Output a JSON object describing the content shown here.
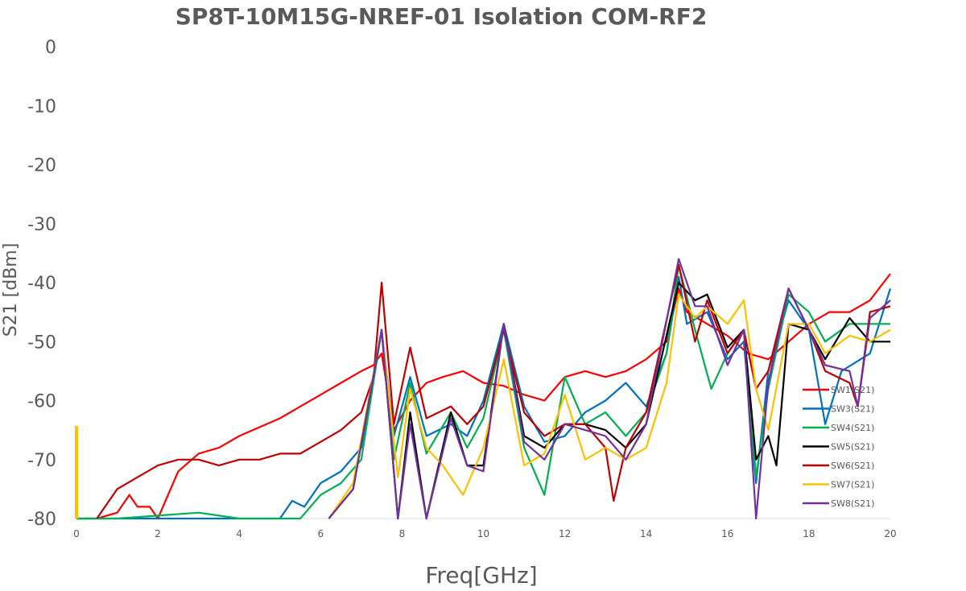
{
  "chart_data": {
    "type": "line",
    "title": "SP8T-10M15G-NREF-01  Isolation   COM-RF2",
    "xlabel": "Freq[GHz]",
    "ylabel": "S21  [dBm]",
    "xlim": [
      0,
      20
    ],
    "ylim": [
      -80,
      0
    ],
    "xticks": [
      "0",
      "2",
      "4",
      "6",
      "8",
      "10",
      "12",
      "14",
      "16",
      "18",
      "20"
    ],
    "yticks": [
      "0",
      "-10",
      "-20",
      "-30",
      "-40",
      "-50",
      "-60",
      "-70",
      "-80"
    ],
    "grid": false,
    "legend_position": "bottom-right",
    "marker_value": {
      "x": 0,
      "y_top": -64.3,
      "color": "#FFC000"
    },
    "series": [
      {
        "name": "SW1(S21)",
        "color": "#FF0000",
        "points": [
          [
            0,
            -80
          ],
          [
            0.5,
            -80
          ],
          [
            1,
            -79
          ],
          [
            1.3,
            -76
          ],
          [
            1.5,
            -78
          ],
          [
            1.8,
            -78
          ],
          [
            2,
            -80
          ],
          [
            2.5,
            -72
          ],
          [
            3,
            -69
          ],
          [
            3.5,
            -68
          ],
          [
            4,
            -66
          ],
          [
            5,
            -63
          ],
          [
            6,
            -59
          ],
          [
            6.5,
            -57
          ],
          [
            7,
            -55
          ],
          [
            7.3,
            -54
          ],
          [
            7.5,
            -52
          ],
          [
            7.8,
            -65
          ],
          [
            8.2,
            -60
          ],
          [
            8.6,
            -57
          ],
          [
            9,
            -56
          ],
          [
            9.5,
            -55
          ],
          [
            10,
            -57
          ],
          [
            10.5,
            -57.5
          ],
          [
            11,
            -59
          ],
          [
            11.5,
            -60
          ],
          [
            12,
            -56
          ],
          [
            12.5,
            -55
          ],
          [
            13,
            -56
          ],
          [
            13.5,
            -55
          ],
          [
            14,
            -53
          ],
          [
            14.5,
            -50
          ],
          [
            14.8,
            -41
          ],
          [
            15,
            -45
          ],
          [
            15.5,
            -47
          ],
          [
            16,
            -49
          ],
          [
            16.5,
            -52
          ],
          [
            17,
            -53
          ],
          [
            17.5,
            -50
          ],
          [
            18,
            -47
          ],
          [
            18.5,
            -45
          ],
          [
            19,
            -45
          ],
          [
            19.5,
            -43
          ],
          [
            20,
            -38.5
          ]
        ]
      },
      {
        "name": "SW3(S21)",
        "color": "#0070C0",
        "points": [
          [
            0,
            -80
          ],
          [
            3,
            -80
          ],
          [
            5,
            -80
          ],
          [
            5.3,
            -77
          ],
          [
            5.6,
            -78
          ],
          [
            6,
            -74
          ],
          [
            6.5,
            -72
          ],
          [
            7,
            -68
          ],
          [
            7.5,
            -48
          ],
          [
            7.8,
            -66
          ],
          [
            8.2,
            -56
          ],
          [
            8.6,
            -66
          ],
          [
            9.2,
            -64
          ],
          [
            9.6,
            -66
          ],
          [
            10,
            -60
          ],
          [
            10.5,
            -47
          ],
          [
            11,
            -61
          ],
          [
            11.5,
            -67
          ],
          [
            12,
            -66
          ],
          [
            12.5,
            -62
          ],
          [
            13,
            -60
          ],
          [
            13.5,
            -57
          ],
          [
            14,
            -61
          ],
          [
            14.5,
            -52
          ],
          [
            14.8,
            -39
          ],
          [
            15,
            -47
          ],
          [
            15.5,
            -45
          ],
          [
            16,
            -53
          ],
          [
            16.4,
            -50
          ],
          [
            16.7,
            -74
          ],
          [
            17,
            -55
          ],
          [
            17.5,
            -43
          ],
          [
            18,
            -48
          ],
          [
            18.4,
            -64
          ],
          [
            18.8,
            -55
          ],
          [
            19.5,
            -52
          ],
          [
            20,
            -41
          ]
        ]
      },
      {
        "name": "SW4(S21)",
        "color": "#00B050",
        "points": [
          [
            0,
            -80
          ],
          [
            1,
            -80
          ],
          [
            3,
            -79
          ],
          [
            4,
            -80
          ],
          [
            5.5,
            -80
          ],
          [
            6,
            -76
          ],
          [
            6.5,
            -74
          ],
          [
            7,
            -70
          ],
          [
            7.5,
            -48
          ],
          [
            7.8,
            -70
          ],
          [
            8.2,
            -57
          ],
          [
            8.6,
            -69
          ],
          [
            9.2,
            -62
          ],
          [
            9.6,
            -68
          ],
          [
            10,
            -63
          ],
          [
            10.5,
            -48
          ],
          [
            11,
            -68
          ],
          [
            11.5,
            -76
          ],
          [
            12,
            -56
          ],
          [
            12.5,
            -64
          ],
          [
            13,
            -62
          ],
          [
            13.5,
            -66
          ],
          [
            14,
            -62
          ],
          [
            14.5,
            -52
          ],
          [
            14.8,
            -37
          ],
          [
            15.2,
            -48
          ],
          [
            15.6,
            -58
          ],
          [
            16,
            -52
          ],
          [
            16.4,
            -48
          ],
          [
            16.7,
            -73
          ],
          [
            17,
            -58
          ],
          [
            17.5,
            -42
          ],
          [
            18,
            -45
          ],
          [
            18.4,
            -50
          ],
          [
            19,
            -47
          ],
          [
            20,
            -47
          ]
        ]
      },
      {
        "name": "SW5(S21)",
        "color": "#000000",
        "points": [
          [
            6.2,
            -80
          ],
          [
            6.8,
            -75
          ],
          [
            7.5,
            -48
          ],
          [
            7.9,
            -80
          ],
          [
            8.2,
            -62
          ],
          [
            8.6,
            -80
          ],
          [
            9.2,
            -62
          ],
          [
            9.6,
            -71
          ],
          [
            10,
            -71
          ],
          [
            10.5,
            -47
          ],
          [
            11,
            -66
          ],
          [
            11.5,
            -68
          ],
          [
            12,
            -64
          ],
          [
            12.5,
            -64
          ],
          [
            13,
            -65
          ],
          [
            13.5,
            -68
          ],
          [
            14,
            -64
          ],
          [
            14.8,
            -40
          ],
          [
            15.2,
            -43
          ],
          [
            15.5,
            -42
          ],
          [
            16,
            -51
          ],
          [
            16.4,
            -48
          ],
          [
            16.7,
            -70
          ],
          [
            17,
            -66
          ],
          [
            17.2,
            -71
          ],
          [
            17.5,
            -47
          ],
          [
            18,
            -48
          ],
          [
            18.4,
            -53
          ],
          [
            19,
            -46
          ],
          [
            19.5,
            -50
          ],
          [
            20,
            -50
          ]
        ]
      },
      {
        "name": "SW6(S21)",
        "color": "#C00000",
        "points": [
          [
            0.5,
            -80
          ],
          [
            1,
            -75
          ],
          [
            1.5,
            -73
          ],
          [
            2,
            -71
          ],
          [
            2.5,
            -70
          ],
          [
            3,
            -70
          ],
          [
            3.5,
            -71
          ],
          [
            4,
            -70
          ],
          [
            4.5,
            -70
          ],
          [
            5,
            -69
          ],
          [
            5.5,
            -69
          ],
          [
            6,
            -67
          ],
          [
            6.5,
            -65
          ],
          [
            7,
            -62
          ],
          [
            7.3,
            -56
          ],
          [
            7.5,
            -40
          ],
          [
            7.8,
            -64
          ],
          [
            8.2,
            -51
          ],
          [
            8.6,
            -63
          ],
          [
            9.2,
            -61
          ],
          [
            9.6,
            -64
          ],
          [
            10,
            -61
          ],
          [
            10.5,
            -48
          ],
          [
            11,
            -62
          ],
          [
            11.5,
            -66
          ],
          [
            12,
            -64
          ],
          [
            12.5,
            -64
          ],
          [
            13,
            -68
          ],
          [
            13.2,
            -77
          ],
          [
            13.5,
            -68
          ],
          [
            14,
            -62
          ],
          [
            14.8,
            -37
          ],
          [
            15.2,
            -50
          ],
          [
            15.5,
            -43
          ],
          [
            16,
            -52
          ],
          [
            16.4,
            -48
          ],
          [
            16.7,
            -58
          ],
          [
            17,
            -55
          ],
          [
            17.5,
            -41
          ],
          [
            18,
            -48
          ],
          [
            18.4,
            -55
          ],
          [
            19,
            -57
          ],
          [
            19.2,
            -61
          ],
          [
            19.5,
            -45
          ],
          [
            20,
            -44
          ]
        ]
      },
      {
        "name": "SW7(S21)",
        "color": "#FFC000",
        "points": [
          [
            6.2,
            -80
          ],
          [
            6.8,
            -74
          ],
          [
            7.5,
            -48
          ],
          [
            7.9,
            -73
          ],
          [
            8.2,
            -58
          ],
          [
            8.6,
            -68
          ],
          [
            9,
            -71
          ],
          [
            9.5,
            -76
          ],
          [
            10,
            -68
          ],
          [
            10.5,
            -53
          ],
          [
            11,
            -71
          ],
          [
            11.5,
            -69
          ],
          [
            12,
            -59
          ],
          [
            12.5,
            -70
          ],
          [
            13,
            -68
          ],
          [
            13.5,
            -70
          ],
          [
            14,
            -68
          ],
          [
            14.5,
            -57
          ],
          [
            14.8,
            -42
          ],
          [
            15.2,
            -46
          ],
          [
            15.5,
            -44
          ],
          [
            16,
            -47
          ],
          [
            16.4,
            -43
          ],
          [
            16.7,
            -58
          ],
          [
            17,
            -65
          ],
          [
            17.5,
            -47
          ],
          [
            18,
            -47
          ],
          [
            18.4,
            -52
          ],
          [
            19,
            -49
          ],
          [
            19.5,
            -50
          ],
          [
            20,
            -48
          ]
        ]
      },
      {
        "name": "SW8(S21)",
        "color": "#7030A0",
        "points": [
          [
            6.2,
            -80
          ],
          [
            6.8,
            -75
          ],
          [
            7.5,
            -48
          ],
          [
            7.9,
            -80
          ],
          [
            8.2,
            -64
          ],
          [
            8.6,
            -80
          ],
          [
            9.2,
            -63
          ],
          [
            9.6,
            -71
          ],
          [
            10,
            -72
          ],
          [
            10.5,
            -47
          ],
          [
            11,
            -67
          ],
          [
            11.5,
            -70
          ],
          [
            12,
            -64
          ],
          [
            12.5,
            -65
          ],
          [
            13,
            -66
          ],
          [
            13.5,
            -70
          ],
          [
            14,
            -64
          ],
          [
            14.8,
            -36
          ],
          [
            15.2,
            -44
          ],
          [
            15.5,
            -44
          ],
          [
            16,
            -54
          ],
          [
            16.4,
            -48
          ],
          [
            16.7,
            -80
          ],
          [
            17,
            -57
          ],
          [
            17.5,
            -41
          ],
          [
            18,
            -48
          ],
          [
            18.4,
            -54
          ],
          [
            19,
            -55
          ],
          [
            19.2,
            -61
          ],
          [
            19.5,
            -46
          ],
          [
            20,
            -43
          ]
        ]
      }
    ]
  }
}
